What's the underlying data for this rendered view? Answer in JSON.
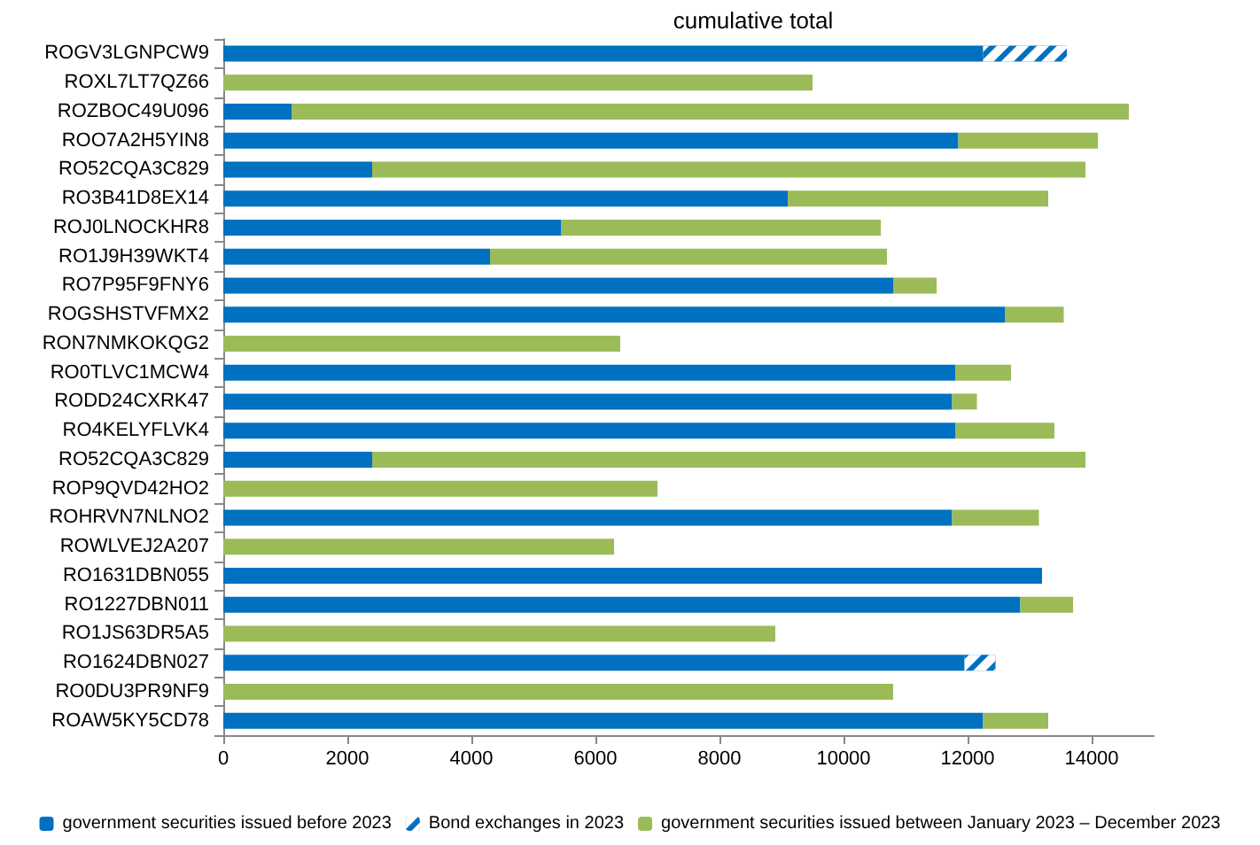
{
  "chart_data": {
    "type": "bar",
    "orientation": "horizontal",
    "stacked": true,
    "title": "cumulative total",
    "categories": [
      "ROGV3LGNPCW9",
      "ROXL7LT7QZ66",
      "ROZBOC49U096",
      "ROO7A2H5YIN8",
      "RO52CQA3C829",
      "RO3B41D8EX14",
      "ROJ0LNOCKHR8",
      "RO1J9H39WKT4",
      "RO7P95F9FNY6",
      "ROGSHSTVFMX2",
      "RON7NMKOKQG2",
      "RO0TLVC1MCW4",
      "RODD24CXRK47",
      "RO4KELYFLVK4",
      "RO52CQA3C829",
      "ROP9QVD42HO2",
      "ROHRVN7NLNO2",
      "ROWLVEJ2A207",
      "RO1631DBN055",
      "RO1227DBN011",
      "RO1JS63DR5A5",
      "RO1624DBN027",
      "RO0DU3PR9NF9",
      "ROAW5KY5CD78"
    ],
    "series": [
      {
        "name": "government securities issued before 2023",
        "color": "#0070c0",
        "values": [
          12250,
          null,
          1100,
          11850,
          2400,
          9100,
          5450,
          4300,
          10800,
          12600,
          null,
          11800,
          11750,
          11800,
          2400,
          null,
          11750,
          null,
          13200,
          12850,
          null,
          11950,
          null,
          12250
        ]
      },
      {
        "name": "Bond exchanges in 2023",
        "color": "#0070c0",
        "values": [
          1350,
          null,
          null,
          null,
          null,
          null,
          null,
          null,
          null,
          null,
          null,
          null,
          null,
          null,
          null,
          null,
          null,
          null,
          null,
          null,
          null,
          500,
          null,
          null
        ]
      },
      {
        "name": "government securities issued between January 2023 – December 2023",
        "color": "#9bbb59",
        "values": [
          null,
          9500,
          13500,
          2250,
          11500,
          4200,
          5150,
          6400,
          700,
          950,
          6400,
          900,
          400,
          1600,
          11500,
          7000,
          1400,
          6300,
          null,
          850,
          8900,
          null,
          10800,
          1050
        ]
      }
    ],
    "xlim": [
      0,
      15000
    ],
    "xticks": [
      0,
      2000,
      4000,
      6000,
      8000,
      10000,
      12000,
      14000
    ],
    "grid": false,
    "legend": "bottom"
  }
}
